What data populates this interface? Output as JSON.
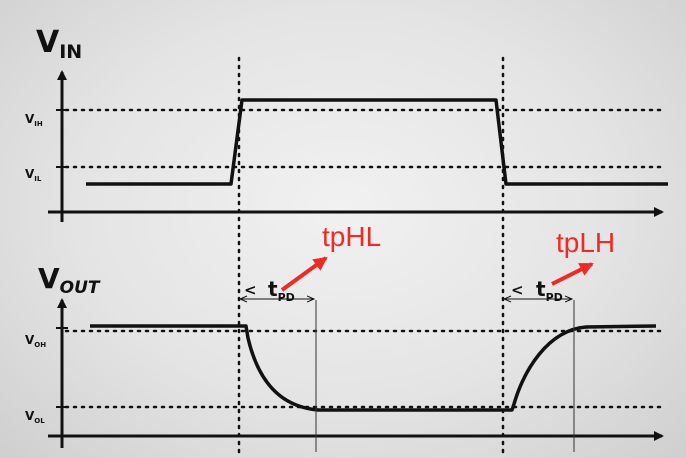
{
  "vin_chart": {
    "title_main": "V",
    "title_sub": "IN",
    "levels": [
      {
        "main": "V",
        "sub": "IH"
      },
      {
        "main": "V",
        "sub": "IL"
      }
    ]
  },
  "vout_chart": {
    "title_main": "V",
    "title_sub": "OUT",
    "levels": [
      {
        "main": "V",
        "sub": "OH"
      },
      {
        "main": "V",
        "sub": "OL"
      }
    ]
  },
  "delays": [
    {
      "arrow_glyph": "<",
      "main": "t",
      "sub": "PD",
      "annotation": "tpHL"
    },
    {
      "arrow_glyph": "<",
      "main": "t",
      "sub": "PD",
      "annotation": "tpLH"
    }
  ],
  "colors": {
    "ink": "#111111",
    "annotation": "#ee2a22",
    "background": "#e6e6e6"
  }
}
